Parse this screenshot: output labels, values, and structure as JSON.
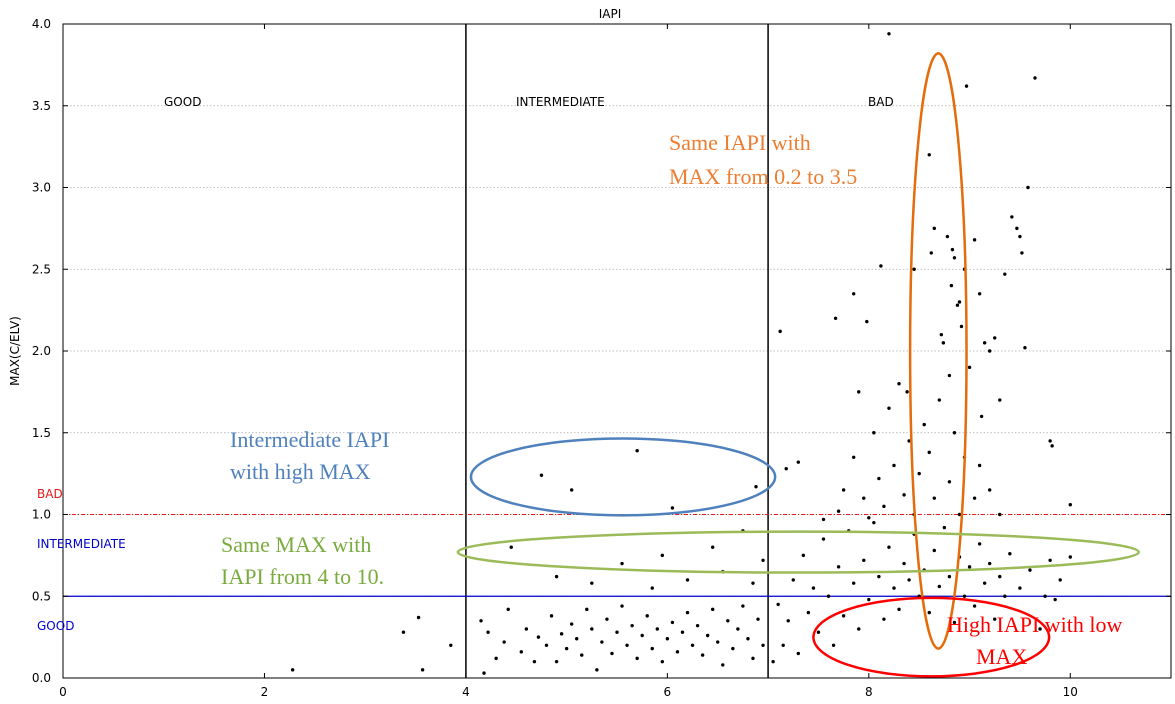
{
  "chart_data": {
    "type": "scatter",
    "title": "IAPI",
    "xlabel": "",
    "ylabel": "MAX(C/ELV)",
    "xlim": [
      0,
      11
    ],
    "ylim": [
      0,
      4.0
    ],
    "x_ticks": [
      "0",
      "2",
      "4",
      "6",
      "8",
      "10"
    ],
    "y_ticks": [
      "0.0",
      "0.5",
      "1.0",
      "1.5",
      "2.0",
      "2.5",
      "3.0",
      "3.5",
      "4.0"
    ],
    "grid": "horizontal dotted",
    "region_labels": [
      "GOOD",
      "INTERMEDIATE",
      "BAD"
    ],
    "level_labels": [
      {
        "text": "BAD",
        "color": "#e41a1c"
      },
      {
        "text": "INTERMEDIATE",
        "color": "#0000cc"
      },
      {
        "text": "GOOD",
        "color": "#0000cc"
      }
    ],
    "threshold_lines": {
      "vertical_x": [
        4,
        7
      ],
      "bad_y": 1.0,
      "good_y": 0.5
    },
    "annotations": [
      {
        "lines": [
          "Same IAPI with",
          "MAX from 0.2 to 3.5"
        ],
        "color": "#ed7d31"
      },
      {
        "lines": [
          "Intermediate IAPI",
          "with high MAX"
        ],
        "color": "#4f81bd"
      },
      {
        "lines": [
          "Same MAX with",
          "IAPI from 4 to 10."
        ],
        "color": "#7aab3f"
      },
      {
        "lines": [
          "High IAPI with low",
          "MAX"
        ],
        "color": "#ff0000"
      }
    ],
    "ellipses": [
      {
        "name": "orange",
        "cx": 8.69,
        "cy": 2.0,
        "rx": 0.28,
        "ry": 1.82,
        "color": "#e46c0a"
      },
      {
        "name": "blue",
        "cx": 5.56,
        "cy": 1.23,
        "rx": 1.51,
        "ry": 0.235,
        "color": "#4f81bd"
      },
      {
        "name": "green",
        "cx": 7.3,
        "cy": 0.77,
        "rx": 3.38,
        "ry": 0.125,
        "color": "#9bbb59"
      },
      {
        "name": "red",
        "cx": 8.62,
        "cy": 0.25,
        "rx": 1.17,
        "ry": 0.24,
        "color": "#ff0000"
      }
    ],
    "points": [
      [
        2.28,
        0.05
      ],
      [
        3.38,
        0.28
      ],
      [
        3.53,
        0.37
      ],
      [
        3.57,
        0.05
      ],
      [
        3.85,
        0.2
      ],
      [
        4.15,
        0.35
      ],
      [
        4.18,
        0.03
      ],
      [
        4.22,
        0.28
      ],
      [
        4.3,
        0.12
      ],
      [
        4.38,
        0.22
      ],
      [
        4.42,
        0.42
      ],
      [
        4.55,
        0.16
      ],
      [
        4.6,
        0.3
      ],
      [
        4.68,
        0.1
      ],
      [
        4.72,
        0.25
      ],
      [
        4.8,
        0.2
      ],
      [
        4.85,
        0.38
      ],
      [
        4.9,
        0.1
      ],
      [
        4.95,
        0.27
      ],
      [
        5.0,
        0.18
      ],
      [
        5.05,
        0.33
      ],
      [
        5.1,
        0.24
      ],
      [
        5.15,
        0.14
      ],
      [
        5.2,
        0.42
      ],
      [
        5.25,
        0.3
      ],
      [
        5.3,
        0.05
      ],
      [
        5.35,
        0.22
      ],
      [
        5.4,
        0.36
      ],
      [
        5.45,
        0.15
      ],
      [
        5.5,
        0.28
      ],
      [
        5.55,
        0.44
      ],
      [
        5.6,
        0.2
      ],
      [
        5.65,
        0.32
      ],
      [
        5.7,
        0.12
      ],
      [
        5.75,
        0.26
      ],
      [
        5.8,
        0.38
      ],
      [
        5.85,
        0.18
      ],
      [
        5.9,
        0.3
      ],
      [
        5.95,
        0.1
      ],
      [
        6.0,
        0.24
      ],
      [
        6.05,
        0.34
      ],
      [
        6.1,
        0.16
      ],
      [
        6.15,
        0.28
      ],
      [
        6.2,
        0.4
      ],
      [
        6.25,
        0.2
      ],
      [
        6.3,
        0.32
      ],
      [
        6.35,
        0.14
      ],
      [
        6.4,
        0.26
      ],
      [
        6.45,
        0.42
      ],
      [
        6.5,
        0.22
      ],
      [
        6.55,
        0.08
      ],
      [
        6.6,
        0.35
      ],
      [
        6.65,
        0.18
      ],
      [
        6.7,
        0.3
      ],
      [
        6.75,
        0.44
      ],
      [
        6.8,
        0.24
      ],
      [
        6.85,
        0.12
      ],
      [
        6.9,
        0.36
      ],
      [
        6.95,
        0.2
      ],
      [
        4.45,
        0.8
      ],
      [
        4.9,
        0.62
      ],
      [
        5.25,
        0.58
      ],
      [
        5.55,
        0.7
      ],
      [
        5.85,
        0.55
      ],
      [
        5.95,
        0.75
      ],
      [
        6.2,
        0.6
      ],
      [
        6.45,
        0.8
      ],
      [
        6.55,
        0.65
      ],
      [
        6.75,
        0.9
      ],
      [
        6.85,
        0.58
      ],
      [
        6.95,
        0.72
      ],
      [
        4.75,
        1.24
      ],
      [
        5.05,
        1.15
      ],
      [
        5.7,
        1.39
      ],
      [
        6.05,
        1.04
      ],
      [
        6.88,
        1.17
      ],
      [
        7.05,
        0.1
      ],
      [
        7.1,
        0.45
      ],
      [
        7.15,
        0.2
      ],
      [
        7.2,
        0.35
      ],
      [
        7.25,
        0.6
      ],
      [
        7.3,
        0.15
      ],
      [
        7.35,
        0.75
      ],
      [
        7.4,
        0.4
      ],
      [
        7.45,
        0.55
      ],
      [
        7.5,
        0.28
      ],
      [
        7.55,
        0.85
      ],
      [
        7.6,
        0.5
      ],
      [
        7.65,
        0.2
      ],
      [
        7.7,
        0.68
      ],
      [
        7.75,
        0.38
      ],
      [
        7.8,
        0.9
      ],
      [
        7.85,
        0.58
      ],
      [
        7.9,
        0.3
      ],
      [
        7.95,
        0.72
      ],
      [
        8.0,
        0.48
      ],
      [
        8.05,
        0.95
      ],
      [
        8.1,
        0.62
      ],
      [
        8.15,
        0.36
      ],
      [
        8.2,
        0.8
      ],
      [
        8.25,
        0.55
      ],
      [
        8.3,
        0.42
      ],
      [
        8.35,
        0.7
      ],
      [
        8.4,
        0.6
      ],
      [
        8.45,
        0.88
      ],
      [
        8.5,
        0.5
      ],
      [
        8.55,
        0.66
      ],
      [
        8.6,
        0.4
      ],
      [
        8.65,
        0.78
      ],
      [
        8.7,
        0.56
      ],
      [
        8.75,
        0.92
      ],
      [
        8.8,
        0.62
      ],
      [
        8.85,
        0.34
      ],
      [
        8.9,
        0.74
      ],
      [
        8.95,
        0.5
      ],
      [
        9.0,
        0.68
      ],
      [
        9.05,
        0.44
      ],
      [
        9.1,
        0.82
      ],
      [
        9.15,
        0.58
      ],
      [
        9.2,
        0.7
      ],
      [
        9.25,
        0.36
      ],
      [
        9.3,
        0.62
      ],
      [
        9.35,
        0.5
      ],
      [
        9.4,
        0.76
      ],
      [
        9.5,
        0.55
      ],
      [
        9.6,
        0.66
      ],
      [
        9.7,
        0.3
      ],
      [
        9.8,
        0.72
      ],
      [
        9.9,
        0.6
      ],
      [
        10.0,
        0.74
      ],
      [
        7.12,
        2.12
      ],
      [
        7.55,
        0.97
      ],
      [
        7.7,
        1.02
      ],
      [
        7.75,
        1.15
      ],
      [
        7.85,
        1.35
      ],
      [
        7.9,
        1.75
      ],
      [
        7.95,
        1.1
      ],
      [
        8.0,
        0.98
      ],
      [
        8.05,
        1.5
      ],
      [
        8.1,
        1.22
      ],
      [
        8.15,
        1.05
      ],
      [
        8.2,
        1.65
      ],
      [
        8.25,
        1.3
      ],
      [
        8.3,
        1.8
      ],
      [
        8.35,
        1.12
      ],
      [
        8.4,
        1.45
      ],
      [
        8.45,
        1.0
      ],
      [
        8.5,
        1.25
      ],
      [
        8.55,
        1.55
      ],
      [
        8.6,
        1.38
      ],
      [
        8.65,
        1.1
      ],
      [
        8.7,
        1.7
      ],
      [
        8.8,
        1.2
      ],
      [
        8.85,
        1.5
      ],
      [
        8.9,
        1.0
      ],
      [
        8.95,
        1.35
      ],
      [
        9.05,
        1.1
      ],
      [
        9.1,
        1.3
      ],
      [
        9.2,
        1.15
      ],
      [
        9.3,
        1.0
      ],
      [
        7.18,
        1.28
      ],
      [
        7.3,
        1.32
      ],
      [
        7.67,
        2.2
      ],
      [
        7.85,
        2.35
      ],
      [
        7.98,
        2.18
      ],
      [
        8.12,
        2.52
      ],
      [
        8.2,
        3.94
      ],
      [
        8.38,
        1.75
      ],
      [
        8.45,
        2.5
      ],
      [
        8.6,
        3.2
      ],
      [
        8.62,
        2.6
      ],
      [
        8.65,
        2.75
      ],
      [
        8.72,
        2.1
      ],
      [
        8.74,
        2.05
      ],
      [
        8.78,
        2.7
      ],
      [
        8.8,
        1.85
      ],
      [
        8.82,
        2.4
      ],
      [
        8.83,
        2.62
      ],
      [
        8.85,
        2.57
      ],
      [
        8.88,
        2.28
      ],
      [
        8.9,
        2.3
      ],
      [
        8.92,
        2.15
      ],
      [
        8.95,
        2.5
      ],
      [
        8.97,
        3.62
      ],
      [
        9.0,
        1.9
      ],
      [
        9.05,
        2.68
      ],
      [
        9.1,
        2.35
      ],
      [
        9.12,
        1.6
      ],
      [
        9.15,
        2.05
      ],
      [
        9.2,
        2.0
      ],
      [
        9.25,
        2.08
      ],
      [
        9.3,
        1.7
      ],
      [
        9.35,
        2.47
      ],
      [
        9.42,
        2.82
      ],
      [
        9.47,
        2.75
      ],
      [
        9.5,
        2.7
      ],
      [
        9.52,
        2.6
      ],
      [
        9.55,
        2.02
      ],
      [
        9.58,
        3.0
      ],
      [
        9.65,
        3.67
      ],
      [
        9.8,
        1.45
      ],
      [
        9.82,
        1.42
      ],
      [
        10.0,
        1.06
      ],
      [
        9.75,
        0.5
      ],
      [
        9.85,
        0.48
      ]
    ]
  }
}
